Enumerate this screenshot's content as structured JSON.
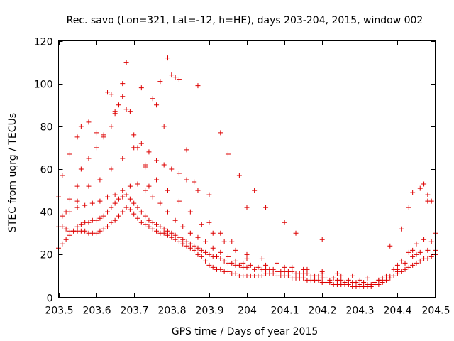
{
  "chart_data": {
    "type": "scatter",
    "title": "Rec. savo (Lon=321, Lat=-12, h=HE), days 203-204, 2015, window 002",
    "xlabel": "GPS time / Days of year 2015",
    "ylabel": "STEC from uqrg / TECUs",
    "xlim": [
      203.5,
      204.5
    ],
    "ylim": [
      0,
      120
    ],
    "xticks": [
      203.5,
      203.6,
      203.7,
      203.8,
      203.9,
      204.0,
      204.1,
      204.2,
      204.3,
      204.4,
      204.5
    ],
    "xtick_labels": [
      "203.5",
      "203.6",
      "203.7",
      "203.8",
      "203.9",
      "204",
      "204.1",
      "204.2",
      "204.3",
      "204.4",
      "204.5"
    ],
    "yticks": [
      0,
      20,
      40,
      60,
      80,
      100,
      120
    ],
    "ytick_labels": [
      "0",
      "20",
      "40",
      "60",
      "80",
      "100",
      "120"
    ],
    "marker": "+",
    "series": [
      {
        "name": "STEC",
        "color": "#dd0000",
        "x": [
          203.5,
          203.51,
          203.52,
          203.53,
          203.54,
          203.55,
          203.56,
          203.57,
          203.58,
          203.59,
          203.6,
          203.61,
          203.62,
          203.63,
          203.64,
          203.65,
          203.66,
          203.67,
          203.68,
          203.69,
          203.7,
          203.71,
          203.72,
          203.73,
          203.74,
          203.75,
          203.76,
          203.77,
          203.78,
          203.79,
          203.8,
          203.81,
          203.82,
          203.83,
          203.84,
          203.85,
          203.86,
          203.87,
          203.88,
          203.89,
          203.9,
          203.91,
          203.92,
          203.93,
          203.94,
          203.95,
          203.96,
          203.97,
          203.98,
          203.99,
          204.0,
          204.01,
          204.02,
          204.03,
          204.04,
          204.05,
          204.06,
          204.07,
          204.08,
          204.09,
          204.1,
          204.11,
          204.12,
          204.13,
          204.14,
          204.15,
          204.16,
          204.17,
          204.18,
          204.19,
          204.2,
          204.21,
          204.22,
          204.23,
          204.24,
          204.25,
          204.26,
          204.27,
          204.28,
          204.29,
          204.3,
          204.31,
          204.32,
          204.33,
          204.34,
          204.35,
          204.36,
          204.37,
          204.38,
          204.39,
          204.4,
          204.41,
          204.42,
          204.43,
          204.44,
          204.45,
          204.46,
          204.47,
          204.48,
          204.49,
          204.5,
          203.5,
          203.51,
          203.52,
          203.53,
          203.54,
          203.55,
          203.56,
          203.57,
          203.58,
          203.59,
          203.6,
          203.61,
          203.62,
          203.63,
          203.64,
          203.65,
          203.66,
          203.67,
          203.68,
          203.69,
          203.7,
          203.71,
          203.72,
          203.73,
          203.74,
          203.75,
          203.76,
          203.77,
          203.78,
          203.79,
          203.8,
          203.81,
          203.82,
          203.83,
          203.84,
          203.85,
          203.86,
          203.87,
          203.88,
          203.89,
          203.9,
          203.91,
          203.92,
          203.93,
          203.94,
          203.95,
          203.96,
          203.97,
          203.98,
          203.99,
          204.0,
          204.02,
          204.04,
          204.06,
          204.08,
          204.1,
          204.12,
          204.14,
          204.16,
          204.18,
          204.2,
          204.22,
          204.24,
          204.26,
          204.28,
          204.3,
          204.32,
          204.34,
          204.36,
          204.38,
          204.4,
          204.42,
          204.44,
          204.46,
          204.48,
          204.5,
          203.51,
          203.53,
          203.55,
          203.57,
          203.59,
          203.61,
          203.63,
          203.65,
          203.67,
          203.69,
          203.71,
          203.73,
          203.75,
          203.77,
          203.79,
          203.81,
          203.83,
          203.85,
          203.87,
          203.89,
          203.91,
          203.93,
          203.95,
          203.97,
          203.99,
          204.01,
          204.03,
          204.05,
          204.07,
          204.09,
          204.11,
          204.13,
          204.15,
          204.17,
          204.19,
          204.21,
          204.23,
          204.25,
          204.27,
          204.29,
          204.31,
          204.33,
          204.35,
          204.37,
          204.39,
          204.41,
          204.43,
          204.45,
          204.47,
          204.49,
          203.52,
          203.55,
          203.58,
          203.61,
          203.64,
          203.67,
          203.7,
          203.73,
          203.76,
          203.79,
          203.82,
          203.85,
          203.88,
          203.91,
          203.94,
          203.97,
          204.0,
          204.05,
          204.1,
          204.15,
          204.2,
          204.25,
          204.3,
          204.35,
          204.4,
          204.45,
          204.5,
          203.53,
          203.55,
          203.56,
          203.58,
          203.6,
          203.62,
          203.64,
          203.65,
          203.67,
          203.68,
          203.7,
          203.72,
          203.74,
          203.76,
          203.78,
          203.8,
          203.82,
          203.84,
          203.87,
          203.9,
          203.93,
          203.96,
          204.0,
          204.04,
          204.08,
          204.12,
          204.16,
          204.2,
          204.24,
          204.28,
          204.32,
          204.36,
          204.4,
          204.44,
          204.48,
          203.5,
          203.51,
          203.53,
          203.55,
          203.56,
          203.58,
          203.6,
          203.62,
          203.63,
          203.64,
          203.65,
          203.66,
          203.67,
          203.68,
          203.69,
          203.71,
          203.72,
          203.73,
          203.74,
          203.75,
          203.76,
          203.77,
          203.78,
          203.79,
          203.8,
          203.81,
          203.82,
          203.84,
          203.86,
          203.87,
          203.9,
          203.93,
          203.95,
          203.98,
          204.0,
          204.02,
          204.05,
          204.1,
          204.13,
          204.2,
          204.38,
          204.41,
          204.43,
          204.44,
          204.46,
          204.47,
          204.48,
          204.49
        ],
        "y": [
          33,
          33,
          32,
          31,
          31,
          31,
          31,
          31,
          30,
          30,
          30,
          31,
          32,
          33,
          35,
          36,
          38,
          40,
          42,
          41,
          39,
          37,
          35,
          34,
          33,
          32,
          31,
          30,
          30,
          29,
          28,
          27,
          26,
          25,
          24,
          23,
          22,
          20,
          19,
          17,
          15,
          14,
          13,
          13,
          12,
          12,
          11,
          11,
          10,
          10,
          10,
          10,
          10,
          10,
          10,
          11,
          11,
          11,
          10,
          10,
          10,
          10,
          9,
          9,
          9,
          9,
          8,
          8,
          8,
          8,
          7,
          7,
          7,
          6,
          6,
          6,
          6,
          6,
          5,
          5,
          5,
          5,
          5,
          5,
          6,
          6,
          7,
          8,
          9,
          10,
          11,
          12,
          13,
          14,
          15,
          16,
          17,
          18,
          18,
          19,
          20,
          23,
          25,
          27,
          29,
          31,
          33,
          34,
          35,
          35,
          36,
          36,
          37,
          38,
          40,
          42,
          44,
          46,
          47,
          48,
          46,
          44,
          42,
          40,
          38,
          36,
          35,
          34,
          33,
          32,
          31,
          30,
          29,
          28,
          27,
          26,
          25,
          24,
          23,
          22,
          21,
          20,
          19,
          19,
          18,
          17,
          16,
          16,
          15,
          15,
          14,
          14,
          13,
          13,
          13,
          12,
          12,
          12,
          11,
          11,
          10,
          9,
          8,
          8,
          7,
          7,
          6,
          6,
          7,
          8,
          10,
          13,
          16,
          19,
          21,
          22,
          22,
          38,
          40,
          42,
          43,
          44,
          45,
          47,
          48,
          50,
          52,
          53,
          50,
          47,
          44,
          40,
          36,
          33,
          30,
          28,
          26,
          23,
          21,
          19,
          17,
          16,
          15,
          14,
          13,
          13,
          12,
          12,
          11,
          11,
          10,
          10,
          9,
          9,
          8,
          8,
          7,
          7,
          6,
          8,
          10,
          13,
          17,
          21,
          25,
          27,
          26,
          40,
          45,
          52,
          55,
          60,
          65,
          70,
          62,
          55,
          50,
          45,
          40,
          34,
          30,
          26,
          22,
          18,
          15,
          14,
          13,
          11,
          10,
          8,
          8,
          15,
          20,
          30,
          46,
          52,
          60,
          65,
          70,
          75,
          80,
          86,
          94,
          88,
          76,
          72,
          68,
          64,
          62,
          60,
          58,
          55,
          50,
          48,
          30,
          26,
          20,
          18,
          16,
          14,
          13,
          12,
          11,
          10,
          9,
          9,
          12,
          22,
          45,
          47,
          57,
          67,
          75,
          80,
          82,
          77,
          76,
          96,
          95,
          87,
          90,
          100,
          110,
          87,
          70,
          98,
          61,
          52,
          93,
          90,
          101,
          80,
          112,
          104,
          103,
          102,
          69,
          54,
          99,
          35,
          77,
          67,
          57,
          42,
          50,
          42,
          35,
          30,
          27,
          24,
          32,
          42,
          49,
          51,
          53,
          48,
          45
        ]
      }
    ]
  }
}
